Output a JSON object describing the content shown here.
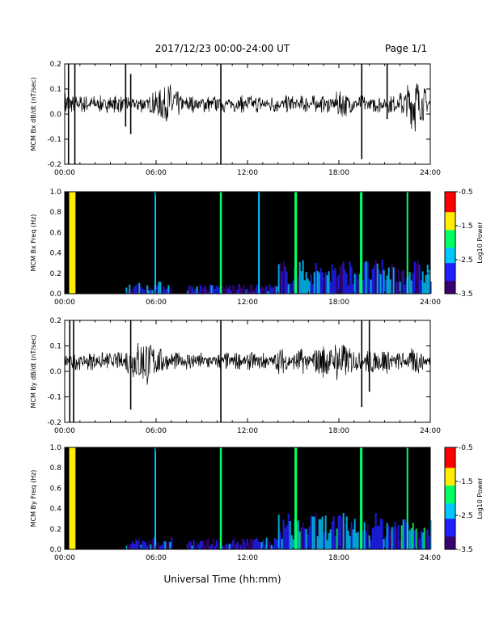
{
  "header": {
    "title": "2017/12/23  00:00-24:00 UT",
    "page": "Page 1/1"
  },
  "xaxis_label": "Universal Time (hh:mm)",
  "colors": {
    "trace": "#000000",
    "spec_bg": "#000000",
    "frame": "#000000"
  },
  "chart_data": [
    {
      "type": "line",
      "ylabel": "MCM Bx dB/dt (nT/sec)",
      "xlim": [
        "00:00",
        "24:00"
      ],
      "ylim": [
        -0.2,
        0.2
      ],
      "x_ticks": [
        "00:00",
        "06:00",
        "12:00",
        "18:00",
        "24:00"
      ],
      "y_ticks": [
        "0.2",
        "0.1",
        "0.0",
        "-0.1",
        "-0.2"
      ],
      "baseline": 0.04,
      "series": [
        {
          "values": [
            0.06,
            0.03,
            0.05,
            0.04,
            0.03,
            0.05,
            0.04,
            0.03,
            0.04,
            0.05,
            0.04,
            0.03,
            0.04,
            0.05,
            0.03,
            0.04,
            0.05,
            0.04,
            0.04,
            0.03,
            0.05,
            0.04,
            0.03,
            0.02,
            0.06,
            0.01,
            0.07,
            0.0,
            0.08,
            0.02,
            0.05,
            0.04,
            0.03,
            0.05,
            0.04,
            0.04,
            0.03,
            0.05,
            0.04,
            0.03,
            0.04,
            0.05,
            0.04,
            0.04,
            0.03,
            0.04,
            0.05,
            0.04,
            0.03,
            0.04,
            0.05,
            0.03,
            0.04,
            0.04,
            0.05,
            0.03,
            0.04,
            0.04,
            0.03,
            0.05,
            0.04,
            0.04,
            0.03,
            0.05,
            0.04,
            0.03,
            0.04,
            0.05,
            0.04,
            0.03,
            0.04,
            0.06,
            0.02,
            0.06,
            0.03,
            0.05,
            0.04,
            0.03,
            0.05,
            0.04,
            0.04,
            0.03,
            0.05,
            0.04,
            0.04,
            0.05,
            0.03,
            0.04,
            0.02,
            0.06,
            0.0,
            0.09,
            -0.02,
            0.07,
            0.01,
            0.05
          ]
        }
      ],
      "spikes": [
        {
          "time": "00:15",
          "min": -0.2,
          "max": 0.2
        },
        {
          "time": "00:40",
          "min": -0.2,
          "max": 0.2
        },
        {
          "time": "04:00",
          "min": -0.05,
          "max": 0.2
        },
        {
          "time": "04:20",
          "min": -0.08,
          "max": 0.16
        },
        {
          "time": "10:15",
          "min": -0.2,
          "max": 0.2
        },
        {
          "time": "19:30",
          "min": -0.18,
          "max": 0.2
        },
        {
          "time": "21:10",
          "min": -0.02,
          "max": 0.2
        }
      ]
    },
    {
      "type": "heatmap",
      "ylabel": "MCM Bx Freq (Hz)",
      "xlim": [
        "00:00",
        "24:00"
      ],
      "ylim": [
        0.0,
        1.0
      ],
      "x_ticks": [
        "00:00",
        "06:00",
        "12:00",
        "18:00",
        "24:00"
      ],
      "y_ticks": [
        "1.0",
        "0.8",
        "0.6",
        "0.4",
        "0.2",
        "0.0"
      ],
      "colorbar": {
        "label": "Log10 Power",
        "ticks": [
          "-0.5",
          "-1.5",
          "-2.5",
          "-3.5"
        ],
        "range": [
          -3.5,
          -0.5
        ]
      },
      "vertical_streaks": [
        {
          "time": "00:30",
          "width_min": 25,
          "level": -1.6
        },
        {
          "time": "05:57",
          "width_min": 6,
          "level": -2.3
        },
        {
          "time": "10:15",
          "width_min": 8,
          "level": -1.8
        },
        {
          "time": "12:45",
          "width_min": 6,
          "level": -2.4
        },
        {
          "time": "15:10",
          "width_min": 10,
          "level": -1.9
        },
        {
          "time": "19:28",
          "width_min": 10,
          "level": -1.8
        },
        {
          "time": "22:30",
          "width_min": 6,
          "level": -2.0
        }
      ],
      "low_band_activity": [
        {
          "start": "04:00",
          "end": "07:00",
          "top_hz": 0.1,
          "level": -3.0
        },
        {
          "start": "08:00",
          "end": "14:00",
          "top_hz": 0.08,
          "level": -3.2
        },
        {
          "start": "14:00",
          "end": "24:00",
          "top_hz": 0.28,
          "level": -2.9
        }
      ]
    },
    {
      "type": "line",
      "ylabel": "MCM By dB/dt (nT/sec)",
      "xlim": [
        "00:00",
        "24:00"
      ],
      "ylim": [
        -0.2,
        0.2
      ],
      "x_ticks": [
        "00:00",
        "06:00",
        "12:00",
        "18:00",
        "24:00"
      ],
      "y_ticks": [
        "0.2",
        "0.1",
        "0.0",
        "-0.1",
        "-0.2"
      ],
      "baseline": 0.04,
      "series": [
        {
          "values": [
            0.05,
            0.04,
            0.03,
            0.05,
            0.04,
            0.04,
            0.03,
            0.05,
            0.04,
            0.03,
            0.04,
            0.05,
            0.04,
            0.03,
            0.05,
            0.04,
            0.06,
            0.02,
            0.07,
            0.0,
            0.08,
            -0.01,
            0.07,
            0.01,
            0.06,
            0.02,
            0.05,
            0.04,
            0.03,
            0.05,
            0.04,
            0.04,
            0.03,
            0.05,
            0.04,
            0.03,
            0.04,
            0.05,
            0.04,
            0.04,
            0.03,
            0.04,
            0.05,
            0.04,
            0.03,
            0.05,
            0.04,
            0.04,
            0.03,
            0.05,
            0.04,
            0.03,
            0.05,
            0.04,
            0.04,
            0.03,
            0.06,
            0.02,
            0.05,
            0.04,
            0.03,
            0.06,
            0.02,
            0.05,
            0.04,
            0.06,
            0.02,
            0.07,
            0.01,
            0.06,
            0.03,
            0.08,
            0.0,
            0.07,
            0.02,
            0.06,
            0.03,
            0.05,
            0.04,
            0.06,
            0.02,
            0.05,
            0.03,
            0.06,
            0.02,
            0.05,
            0.04,
            0.03,
            0.05,
            0.04,
            0.03,
            0.06,
            0.02,
            0.05,
            0.04,
            0.04
          ]
        }
      ],
      "spikes": [
        {
          "time": "00:20",
          "min": -0.2,
          "max": 0.2
        },
        {
          "time": "00:35",
          "min": -0.2,
          "max": 0.2
        },
        {
          "time": "04:20",
          "min": -0.15,
          "max": 0.2
        },
        {
          "time": "10:15",
          "min": -0.2,
          "max": 0.2
        },
        {
          "time": "19:30",
          "min": -0.14,
          "max": 0.2
        },
        {
          "time": "20:00",
          "min": -0.08,
          "max": 0.2
        }
      ]
    },
    {
      "type": "heatmap",
      "ylabel": "MCM By Freq (Hz)",
      "xlim": [
        "00:00",
        "24:00"
      ],
      "ylim": [
        0.0,
        1.0
      ],
      "x_ticks": [
        "00:00",
        "06:00",
        "12:00",
        "18:00",
        "24:00"
      ],
      "y_ticks": [
        "1.0",
        "0.8",
        "0.6",
        "0.4",
        "0.2",
        "0.0"
      ],
      "colorbar": {
        "label": "Log10 Power",
        "ticks": [
          "-0.5",
          "-1.5",
          "-2.5",
          "-3.5"
        ],
        "range": [
          -3.5,
          -0.5
        ]
      },
      "vertical_streaks": [
        {
          "time": "00:30",
          "width_min": 25,
          "level": -1.6
        },
        {
          "time": "05:57",
          "width_min": 6,
          "level": -2.3
        },
        {
          "time": "10:15",
          "width_min": 8,
          "level": -1.8
        },
        {
          "time": "15:10",
          "width_min": 10,
          "level": -1.9
        },
        {
          "time": "19:28",
          "width_min": 10,
          "level": -1.8
        },
        {
          "time": "22:30",
          "width_min": 6,
          "level": -2.0
        }
      ],
      "low_band_activity": [
        {
          "start": "04:00",
          "end": "07:00",
          "top_hz": 0.1,
          "level": -3.0
        },
        {
          "start": "08:00",
          "end": "14:00",
          "top_hz": 0.1,
          "level": -3.2
        },
        {
          "start": "14:00",
          "end": "24:00",
          "top_hz": 0.3,
          "level": -2.8
        }
      ]
    }
  ]
}
